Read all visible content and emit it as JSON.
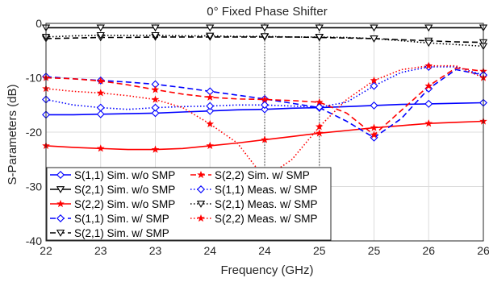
{
  "chart_data": {
    "type": "line",
    "title": "0° Fixed Phase Shifter",
    "xlabel": "Frequency (GHz)",
    "ylabel": "S-Parameters (dB)",
    "xlim": [
      22,
      26
    ],
    "ylim": [
      -40,
      0
    ],
    "xticks": [
      22,
      22.5,
      23,
      23.5,
      24,
      24.5,
      25,
      25.5,
      26
    ],
    "xtick_labels": [
      "22",
      "23",
      "23",
      "24",
      "24",
      "25",
      "25",
      "26",
      "26"
    ],
    "yticks": [
      -40,
      -30,
      -20,
      -10,
      0
    ],
    "ytick_labels": [
      "-40",
      "-30",
      "-20",
      "-10",
      "0"
    ],
    "grid": true,
    "legend_position": "bottom-left",
    "vlines": [
      24.0,
      24.5
    ],
    "series": [
      {
        "name": "S(1,1) Sim. w/o SMP",
        "color": "#0000ff",
        "dash": "solid",
        "marker": "diamond",
        "x": [
          22,
          22.25,
          22.5,
          22.75,
          23,
          23.25,
          23.5,
          23.75,
          24,
          24.25,
          24.5,
          24.75,
          25,
          25.25,
          25.5,
          25.75,
          26
        ],
        "y": [
          -16.8,
          -16.8,
          -16.7,
          -16.6,
          -16.5,
          -16.3,
          -16.1,
          -15.9,
          -15.8,
          -15.6,
          -15.5,
          -15.3,
          -15.1,
          -14.9,
          -14.8,
          -14.7,
          -14.6
        ]
      },
      {
        "name": "S(2,1) Sim. w/o SMP",
        "color": "#000000",
        "dash": "solid",
        "marker": "triangle-down",
        "x": [
          22,
          22.25,
          22.5,
          22.75,
          23,
          23.25,
          23.5,
          23.75,
          24,
          24.25,
          24.5,
          24.75,
          25,
          25.25,
          25.5,
          25.75,
          26
        ],
        "y": [
          -0.8,
          -0.8,
          -0.8,
          -0.8,
          -0.8,
          -0.8,
          -0.8,
          -0.8,
          -0.8,
          -0.8,
          -0.8,
          -0.8,
          -0.8,
          -0.8,
          -0.8,
          -0.8,
          -0.8
        ]
      },
      {
        "name": "S(2,2) Sim. w/o SMP",
        "color": "#ff0000",
        "dash": "solid",
        "marker": "star",
        "x": [
          22,
          22.25,
          22.5,
          22.75,
          23,
          23.25,
          23.5,
          23.75,
          24,
          24.25,
          24.5,
          24.75,
          25,
          25.25,
          25.5,
          25.75,
          26
        ],
        "y": [
          -22.5,
          -22.8,
          -23.0,
          -23.2,
          -23.2,
          -23.0,
          -22.5,
          -22.0,
          -21.4,
          -20.8,
          -20.2,
          -19.7,
          -19.2,
          -18.8,
          -18.4,
          -18.2,
          -18.0
        ]
      },
      {
        "name": "S(1,1) Sim. w/ SMP",
        "color": "#0000ff",
        "dash": "dashed",
        "marker": "diamond",
        "x": [
          22,
          22.25,
          22.5,
          22.75,
          23,
          23.25,
          23.5,
          23.75,
          24,
          24.25,
          24.5,
          24.75,
          25,
          25.25,
          25.5,
          25.75,
          26
        ],
        "y": [
          -9.8,
          -10.2,
          -10.5,
          -10.8,
          -11.2,
          -11.8,
          -12.5,
          -13.2,
          -13.9,
          -14.7,
          -15.5,
          -18.0,
          -21.0,
          -17.5,
          -12.0,
          -8.5,
          -9.5
        ]
      },
      {
        "name": "S(2,1) Sim. w/ SMP",
        "color": "#000000",
        "dash": "dashed",
        "marker": "triangle-down",
        "x": [
          22,
          22.25,
          22.5,
          22.75,
          23,
          23.25,
          23.5,
          23.75,
          24,
          24.25,
          24.5,
          24.75,
          25,
          25.25,
          25.5,
          25.75,
          26
        ],
        "y": [
          -2.8,
          -2.7,
          -2.6,
          -2.6,
          -2.5,
          -2.5,
          -2.5,
          -2.5,
          -2.5,
          -2.5,
          -2.6,
          -2.7,
          -2.8,
          -3.0,
          -3.2,
          -3.4,
          -3.5
        ]
      },
      {
        "name": "S(2,2) Sim. w/ SMP",
        "color": "#ff0000",
        "dash": "dashed",
        "marker": "star",
        "x": [
          22,
          22.25,
          22.5,
          22.75,
          23,
          23.25,
          23.5,
          23.75,
          24,
          24.25,
          24.5,
          24.75,
          25,
          25.25,
          25.5,
          25.75,
          26
        ],
        "y": [
          -10.0,
          -10.2,
          -10.6,
          -11.3,
          -12.2,
          -13.0,
          -13.6,
          -13.9,
          -14.0,
          -14.2,
          -14.5,
          -16.5,
          -20.5,
          -16.0,
          -11.5,
          -8.2,
          -8.8
        ]
      },
      {
        "name": "S(1,1) Meas. w/ SMP",
        "color": "#0000ff",
        "dash": "dotted",
        "marker": "diamond",
        "x": [
          22,
          22.25,
          22.5,
          22.75,
          23,
          23.25,
          23.5,
          23.75,
          24,
          24.25,
          24.5,
          24.75,
          25,
          25.25,
          25.5,
          25.75,
          26
        ],
        "y": [
          -14.0,
          -15.0,
          -15.5,
          -15.8,
          -15.5,
          -15.3,
          -15.2,
          -15.0,
          -15.0,
          -15.2,
          -15.4,
          -14.5,
          -11.5,
          -9.0,
          -8.0,
          -8.0,
          -9.5
        ]
      },
      {
        "name": "S(2,1) Meas. w/ SMP",
        "color": "#000000",
        "dash": "dotted",
        "marker": "triangle-down",
        "x": [
          22,
          22.25,
          22.5,
          22.75,
          23,
          23.25,
          23.5,
          23.75,
          24,
          24.25,
          24.5,
          24.75,
          25,
          25.25,
          25.5,
          25.75,
          26
        ],
        "y": [
          -2.5,
          -2.3,
          -2.2,
          -2.2,
          -2.2,
          -2.3,
          -2.3,
          -2.4,
          -2.4,
          -2.5,
          -2.5,
          -2.6,
          -2.8,
          -3.2,
          -3.6,
          -3.9,
          -4.2
        ]
      },
      {
        "name": "S(2,2) Meas. w/ SMP",
        "color": "#ff0000",
        "dash": "dotted",
        "marker": "star",
        "x": [
          22,
          22.25,
          22.5,
          22.75,
          23,
          23.25,
          23.5,
          23.75,
          24,
          24.25,
          24.5,
          24.75,
          25,
          25.25,
          25.5,
          25.75,
          26
        ],
        "y": [
          -12.0,
          -12.5,
          -12.8,
          -13.3,
          -14.0,
          -15.5,
          -18.5,
          -22.0,
          -28.5,
          -25.0,
          -19.0,
          -14.0,
          -10.5,
          -8.5,
          -7.8,
          -7.8,
          -10.0
        ]
      }
    ]
  }
}
